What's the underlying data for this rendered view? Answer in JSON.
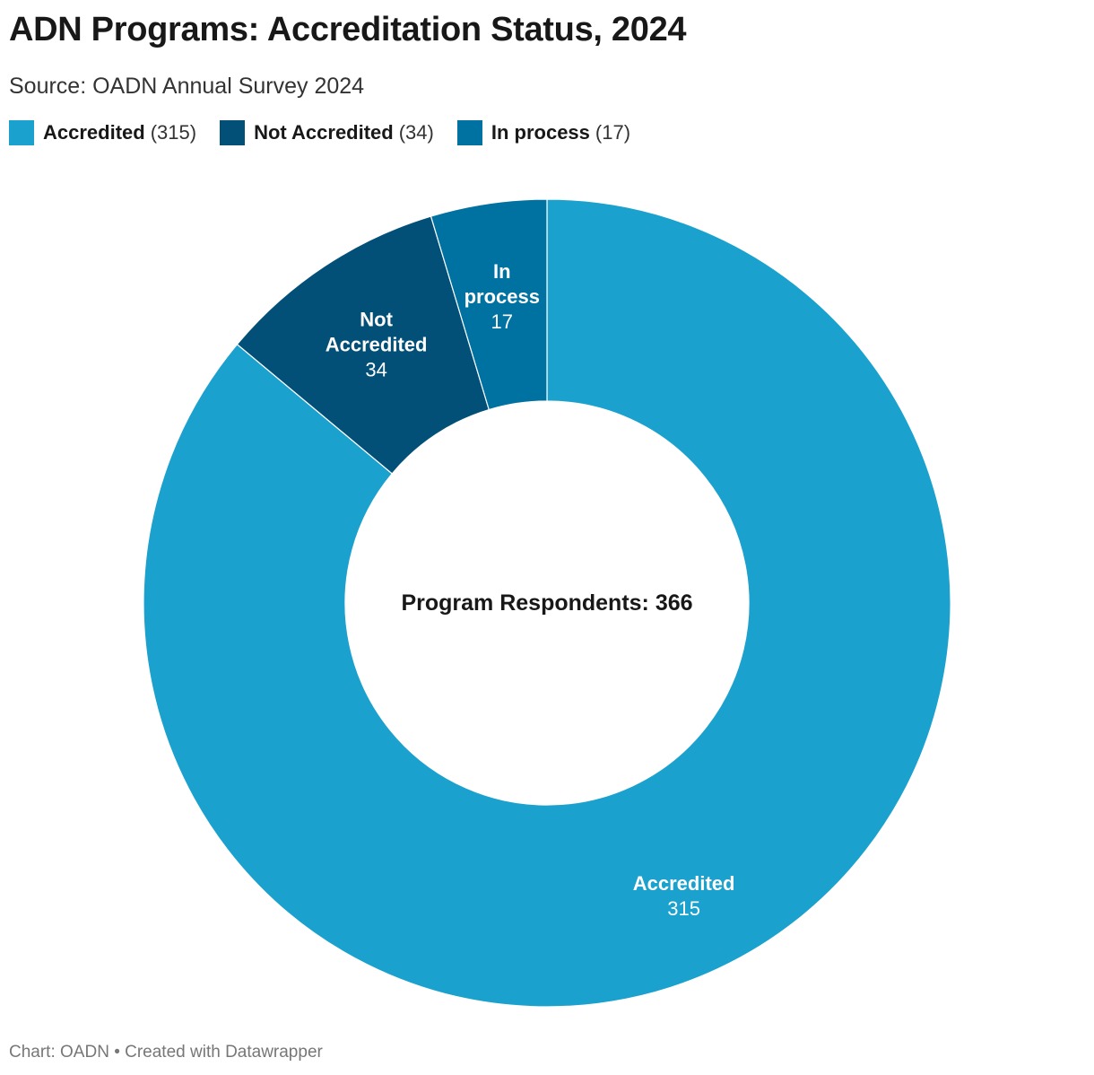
{
  "header": {
    "title": "ADN Programs: Accreditation Status, 2024",
    "subtitle": "Source: OADN Annual Survey 2024"
  },
  "footer": {
    "credit": "Chart: OADN • Created with Datawrapper"
  },
  "chart_data": {
    "type": "pie",
    "variant": "donut",
    "title": "ADN Programs: Accreditation Status, 2024",
    "subtitle": "Source: OADN Annual Survey 2024",
    "center_label": "Program Respondents: 366",
    "legend_position": "top-left",
    "slices": [
      {
        "name": "Accredited",
        "value": 315,
        "color": "#1aa1cd",
        "count_text": "(315)",
        "label_lines": [
          "Accredited"
        ],
        "value_text": "315"
      },
      {
        "name": "Not Accredited",
        "value": 34,
        "color": "#024f78",
        "count_text": "(34)",
        "label_lines": [
          "Not",
          "Accredited"
        ],
        "value_text": "34"
      },
      {
        "name": "In process",
        "value": 17,
        "color": "#0072a1",
        "count_text": "(17)",
        "label_lines": [
          "In",
          "process"
        ],
        "value_text": "17"
      }
    ]
  }
}
